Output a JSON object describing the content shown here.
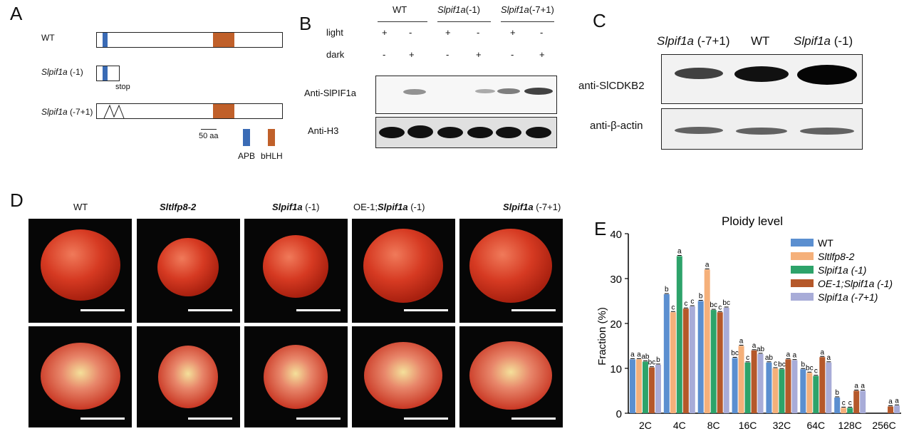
{
  "panels": {
    "a": "A",
    "b": "B",
    "c": "C",
    "d": "D",
    "e": "E"
  },
  "panelA": {
    "rows": [
      {
        "name": "WT",
        "italic": false,
        "suffix": ""
      },
      {
        "name": "Slpif1a",
        "italic": true,
        "suffix": " (-1)"
      },
      {
        "name": "Slpif1a",
        "italic": true,
        "suffix": " (-7+1)"
      }
    ],
    "stop": "stop",
    "scale": "50 aa",
    "legend": [
      {
        "label": "APB",
        "color": "#3a6bb5"
      },
      {
        "label": "bHLH",
        "color": "#c0602a"
      }
    ]
  },
  "panelB": {
    "groups": [
      {
        "name": "WT",
        "italic": false,
        "suffix": ""
      },
      {
        "name": "Slpif1a",
        "italic": true,
        "suffix": "(-1)"
      },
      {
        "name": "Slpif1a",
        "italic": true,
        "suffix": "(-7+1)"
      }
    ],
    "light_label": "light",
    "dark_label": "dark",
    "light": [
      "+",
      "-",
      "+",
      "-",
      "+",
      "-"
    ],
    "dark": [
      "-",
      "+",
      "-",
      "+",
      "-",
      "+"
    ],
    "blot1": "Anti-SlPIF1a",
    "blot2": "Anti-H3"
  },
  "panelC": {
    "lanes": [
      {
        "name": "Slpif1a",
        "italic": true,
        "suffix": " (-7+1)"
      },
      {
        "name": "WT",
        "italic": false,
        "suffix": ""
      },
      {
        "name": "Slpif1a",
        "italic": true,
        "suffix": " (-1)"
      }
    ],
    "blot1": "anti-SlCDKB2",
    "blot2": "anti-β-actin"
  },
  "panelD": {
    "columns": [
      {
        "name": "WT",
        "prefix": "",
        "italic": false,
        "suffix": ""
      },
      {
        "name": "Sltlfp8-2",
        "prefix": "",
        "italic": true,
        "suffix": ""
      },
      {
        "name": "Slpif1a",
        "prefix": "",
        "italic": true,
        "suffix": " (-1)"
      },
      {
        "name": "Slpif1a",
        "prefix": "OE-1;",
        "italic": true,
        "suffix": " (-1)"
      },
      {
        "name": "Slpif1a",
        "prefix": "",
        "italic": true,
        "suffix": " (-7+1)"
      }
    ]
  },
  "chart_data": {
    "type": "bar",
    "title": "Ploidy level",
    "ylabel": "Fraction (%)",
    "xlabel": "",
    "ylim": [
      0,
      40
    ],
    "yticks": [
      0,
      10,
      20,
      30,
      40
    ],
    "categories": [
      "2C",
      "4C",
      "8C",
      "16C",
      "32C",
      "64C",
      "128C",
      "256C"
    ],
    "series": [
      {
        "name": "WT",
        "color": "#5b8fd0",
        "values": [
          12,
          26.5,
          25,
          12.3,
          11.3,
          9.8,
          3.5,
          0
        ],
        "letters": [
          "a",
          "b",
          "b",
          "bc",
          "ab",
          "b",
          "b",
          ""
        ]
      },
      {
        "name": "Sltlfp8-2",
        "italic": true,
        "color": "#f5b07a",
        "values": [
          12,
          22.5,
          32,
          15,
          10,
          9,
          1.2,
          0
        ],
        "letters": [
          "a",
          "c",
          "a",
          "a",
          "c",
          "bc",
          "c",
          ""
        ]
      },
      {
        "name": "Slpif1a (-1)",
        "italic": true,
        "color": "#2da36a",
        "values": [
          11.5,
          35,
          23,
          11.3,
          9.8,
          8.3,
          1.2,
          0
        ],
        "letters": [
          "ab",
          "a",
          "bc",
          "c",
          "bc",
          "c",
          "c",
          ""
        ]
      },
      {
        "name": "OE-1;Slpif1a (-1)",
        "italic": true,
        "color": "#b5582a",
        "values": [
          10.2,
          23.3,
          22.5,
          14,
          12,
          12.5,
          5,
          1.5
        ],
        "letters": [
          "bc",
          "c",
          "c",
          "a",
          "a",
          "a",
          "a",
          "a"
        ]
      },
      {
        "name": "Slpif1a (-7+1)",
        "italic": true,
        "color": "#a8acd8",
        "values": [
          10.8,
          23.8,
          23.5,
          13.2,
          11.8,
          11.3,
          5,
          1.7
        ],
        "letters": [
          "b",
          "c",
          "bc",
          "ab",
          "a",
          "a",
          "a",
          "a"
        ]
      }
    ]
  }
}
